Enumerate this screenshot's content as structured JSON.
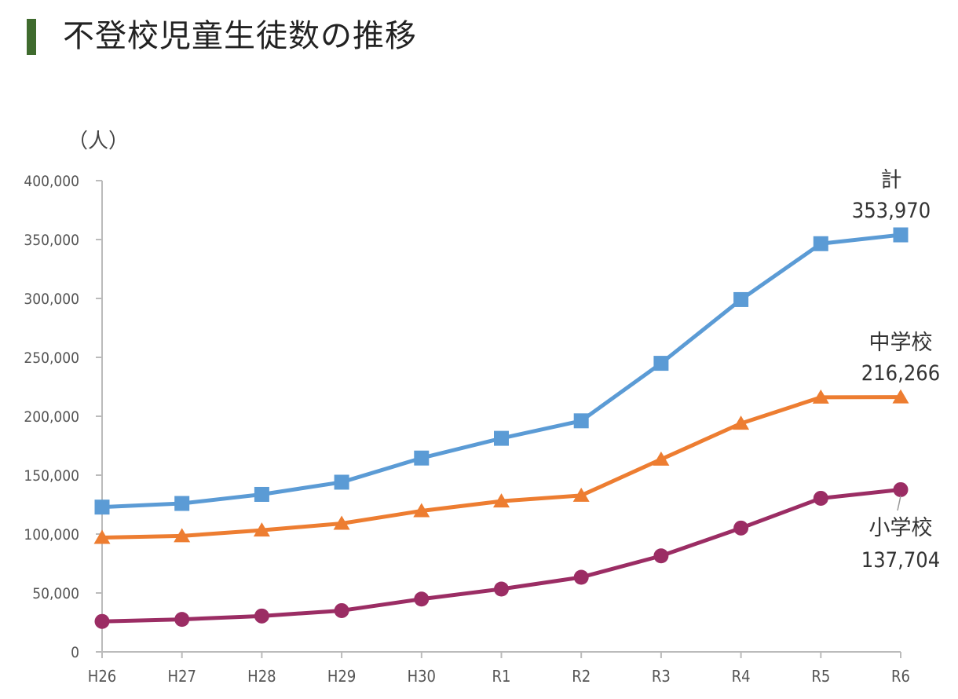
{
  "title": "不登校児童生徒数の推移",
  "colors": {
    "title_bar": "#3f6b2e",
    "total": "#5b9bd5",
    "middle": "#ed7d31",
    "elementary": "#9b2d64",
    "axis": "#bbbbbb"
  },
  "chart_data": {
    "type": "line",
    "title": "不登校児童生徒数の推移",
    "ylabel": "（人）",
    "xlabel": "",
    "categories": [
      "H26",
      "H27",
      "H28",
      "H29",
      "H30",
      "R1",
      "R2",
      "R3",
      "R4",
      "R5",
      "R6"
    ],
    "ylim": [
      0,
      400000
    ],
    "yticks": [
      0,
      50000,
      100000,
      150000,
      200000,
      250000,
      300000,
      350000,
      400000
    ],
    "ytick_labels": [
      "0",
      "50,000",
      "100,000",
      "150,000",
      "200,000",
      "250,000",
      "300,000",
      "350,000",
      "400,000"
    ],
    "grid": false,
    "legend": "none",
    "series": [
      {
        "key": "total",
        "name": "計",
        "marker": "square",
        "end_label": "353,970",
        "values": [
          122902,
          125991,
          133683,
          144031,
          164528,
          181272,
          196127,
          244940,
          299048,
          346482,
          353970
        ]
      },
      {
        "key": "middle",
        "name": "中学校",
        "marker": "triangle",
        "end_label": "216,266",
        "values": [
          97033,
          98408,
          103235,
          108999,
          119687,
          127922,
          132777,
          163442,
          193936,
          216112,
          216266
        ]
      },
      {
        "key": "elementary",
        "name": "小学校",
        "marker": "circle",
        "end_label": "137,704",
        "values": [
          25864,
          27583,
          30448,
          35032,
          44841,
          53350,
          63350,
          81498,
          105112,
          130370,
          137704
        ]
      }
    ]
  }
}
